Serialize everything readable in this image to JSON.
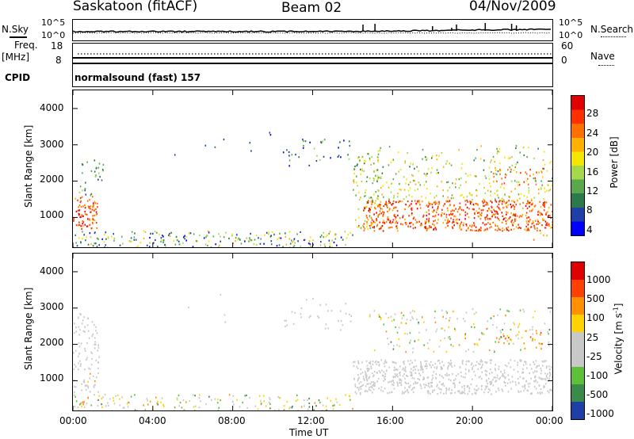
{
  "header": {
    "station": "Saskatoon (fitACF)",
    "beam": "Beam 02",
    "date": "04/Nov/2009"
  },
  "top_panels": {
    "nsky_label": "N.Sky",
    "nsearch_label": "N.Search",
    "left_ticks_top": [
      "10^5",
      "10^0"
    ],
    "right_ticks_top": [
      "10^5",
      "10^0"
    ],
    "freq_label": "Freq.",
    "freq_unit": "[MHz]",
    "freq_ticks": [
      "18",
      "8"
    ],
    "nave_ticks": [
      "60",
      "0"
    ],
    "nave_label": "Nave",
    "cpid_label": "CPID",
    "cpid_text": "normalsound (fast) 157"
  },
  "chart_data": [
    {
      "type": "heatmap",
      "ylabel": "Slant Range [km]",
      "xlabel": "",
      "ylim": [
        180,
        4500
      ],
      "xlim": [
        "00:00",
        "24:00"
      ],
      "y_ticks": [
        "4000",
        "3000",
        "2000",
        "1000"
      ],
      "colorbar_label": "Power [dB]",
      "colorbar_ticks": [
        "28",
        "24",
        "20",
        "16",
        "12",
        "8",
        "4"
      ],
      "colors": [
        "#0000ff",
        "#1f3fa8",
        "#2b7a4b",
        "#5aa84a",
        "#a6d94a",
        "#f5e600",
        "#ffb000",
        "#ff7000",
        "#ff3000",
        "#e00000"
      ]
    },
    {
      "type": "heatmap",
      "ylabel": "Slant Range [km]",
      "xlabel": "Time UT",
      "ylim": [
        180,
        4500
      ],
      "xlim": [
        "00:00",
        "24:00"
      ],
      "y_ticks": [
        "4000",
        "3000",
        "2000",
        "1000"
      ],
      "x_ticks": [
        "00:00",
        "04:00",
        "08:00",
        "12:00",
        "16:00",
        "20:00",
        "00:00"
      ],
      "colorbar_label": "Velocity [m s",
      "colorbar_label_sup": "-1",
      "colorbar_label_end": "]",
      "colorbar_ticks": [
        "1000",
        "500",
        "100",
        "25",
        "-25",
        "-100",
        "-500",
        "-1000"
      ],
      "colors": [
        "#1f3fa8",
        "#3a8a4a",
        "#5cc03a",
        "#c8c8c8",
        "#c8c8c8",
        "#ffd200",
        "#ff9000",
        "#ff4000",
        "#e00000"
      ]
    }
  ]
}
